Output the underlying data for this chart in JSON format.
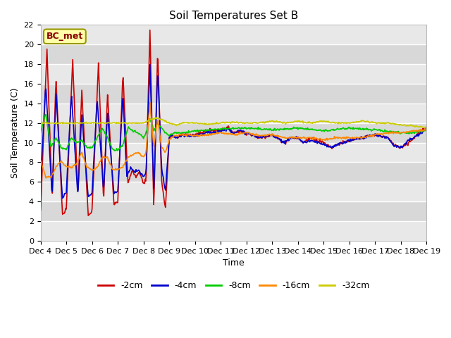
{
  "title": "Soil Temperatures Set B",
  "xlabel": "Time",
  "ylabel": "Soil Temperature (C)",
  "ylim": [
    0,
    22
  ],
  "yticks": [
    0,
    2,
    4,
    6,
    8,
    10,
    12,
    14,
    16,
    18,
    20,
    22
  ],
  "xtick_labels": [
    "Dec 4",
    "Dec 5",
    "Dec 6",
    "Dec 7",
    "Dec 8",
    "Dec 9",
    "Dec 10",
    "Dec 11",
    "Dec 12",
    "Dec 13",
    "Dec 14",
    "Dec 15",
    "Dec 16",
    "Dec 17",
    "Dec 18",
    "Dec 19"
  ],
  "annotation_text": "BC_met",
  "colors": {
    "-2cm": "#cc0000",
    "-4cm": "#0000cc",
    "-8cm": "#00cc00",
    "-16cm": "#ff8800",
    "-32cm": "#cccc00"
  },
  "fig_bg_color": "#ffffff",
  "plot_bg_color": "#e8e8e8",
  "band_color_light": "#e8e8e8",
  "band_color_dark": "#d8d8d8",
  "grid_color": "#ffffff",
  "linewidth": 1.2,
  "title_fontsize": 11,
  "axis_fontsize": 9,
  "tick_fontsize": 8
}
